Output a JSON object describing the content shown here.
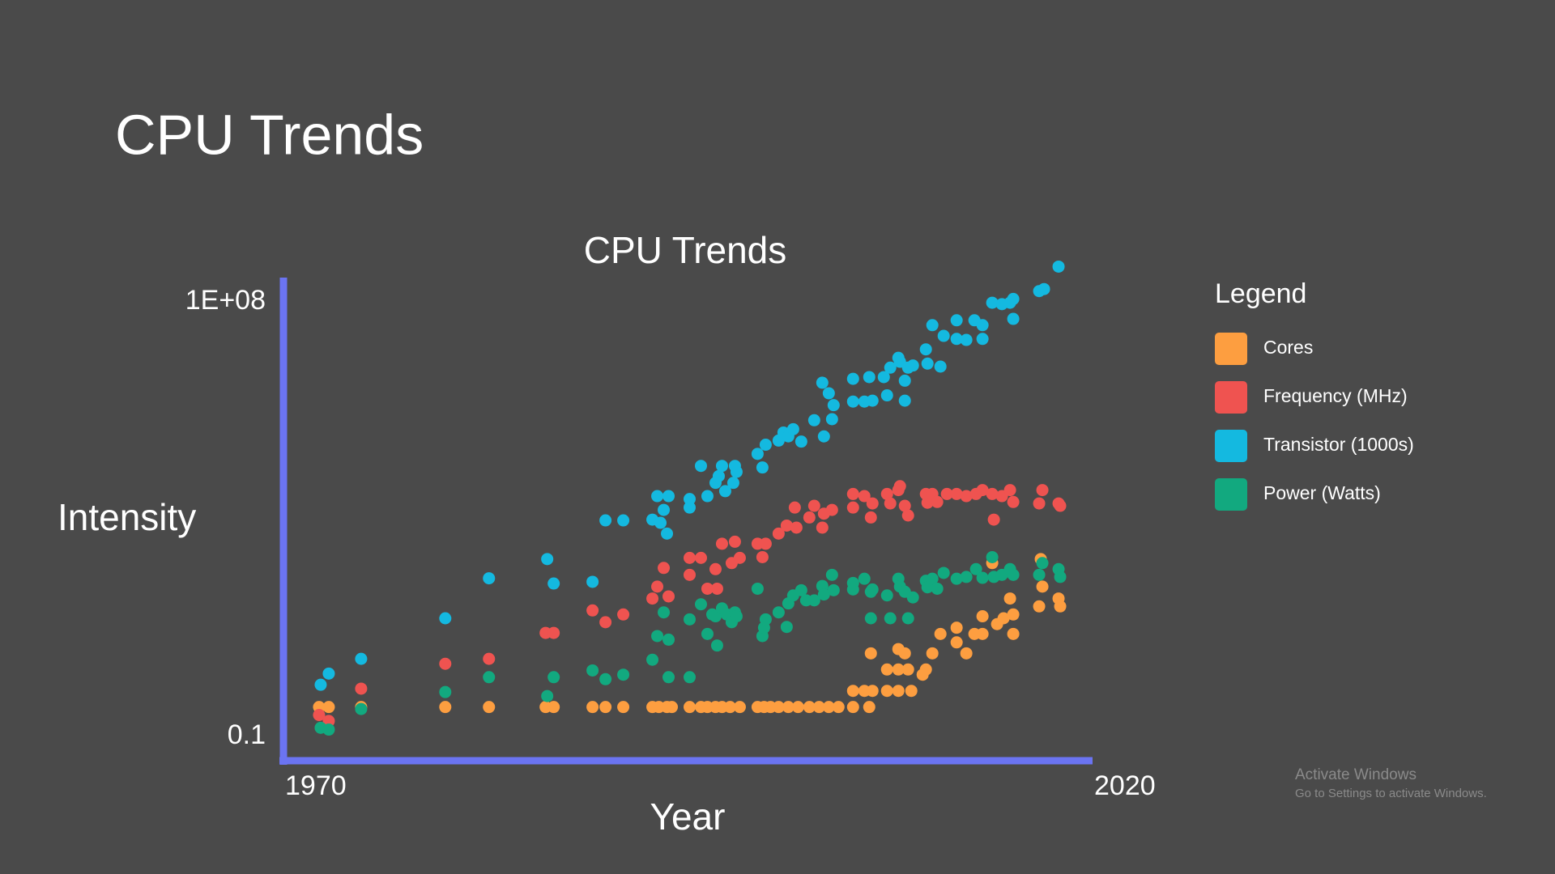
{
  "page_title": "CPU Trends",
  "watermark": {
    "title": "Activate Windows",
    "subtitle": "Go to Settings to activate Windows."
  },
  "chart_data": {
    "type": "scatter",
    "title": "CPU Trends",
    "x_label": "Year",
    "y_label": "Intensity",
    "yscale": "log",
    "xlim": [
      1970,
      2020
    ],
    "xticks": [
      1970,
      2020
    ],
    "ylim": [
      0.1,
      100000000
    ],
    "yticks": [
      0.1,
      {
        "value": 100000000,
        "label": "1E+08"
      }
    ],
    "grid": false,
    "legend": "right",
    "legend_title": "Legend",
    "axis_color": "#6b74f2",
    "series": [
      {
        "name": "Cores",
        "color": "#fd9e40",
        "x": [
          1972.2,
          1972.8,
          1974.8,
          1980.0,
          1982.7,
          1986.2,
          1986.7,
          1989.1,
          1989.9,
          1991.0,
          1992.8,
          1993.2,
          1993.7,
          1994.0,
          1995.1,
          1995.8,
          1996.2,
          1996.7,
          1997.1,
          1997.6,
          1998.2,
          1999.3,
          1999.7,
          2000.1,
          2000.6,
          2001.2,
          2001.8,
          2002.5,
          2003.1,
          2003.7,
          2004.3,
          2005.2,
          2006.2,
          2005.2,
          2005.9,
          2006.4,
          2007.3,
          2008.0,
          2008.8,
          2006.3,
          2008.0,
          2008.4,
          2007.3,
          2008.0,
          2008.6,
          2009.7,
          2009.5,
          2010.1,
          2010.6,
          2011.6,
          2011.6,
          2012.2,
          2012.7,
          2013.2,
          2013.2,
          2014.1,
          2014.5,
          2014.9,
          2015.1,
          2015.1,
          2013.8,
          2016.7,
          2016.9,
          2016.8,
          2017.9,
          2018.0
        ],
        "values": [
          1,
          1,
          1,
          1,
          1,
          1,
          1,
          1,
          1,
          1,
          1,
          1,
          1,
          1,
          1,
          1,
          1,
          1,
          1,
          1,
          1,
          1,
          1,
          1,
          1,
          1,
          1,
          1,
          1,
          1,
          1,
          1,
          1,
          2,
          2,
          2,
          2,
          2,
          2,
          10,
          12,
          10,
          5,
          5,
          5,
          5,
          4,
          10,
          23,
          30,
          16,
          10,
          23,
          23,
          49,
          35,
          45,
          105,
          53,
          23,
          480,
          75,
          175,
          570,
          105,
          75
        ]
      },
      {
        "name": "Frequency (MHz)",
        "color": "#ef5350",
        "x": [
          1972.2,
          1972.8,
          1974.8,
          1980.0,
          1982.7,
          1986.2,
          1986.7,
          1989.1,
          1989.9,
          1991.0,
          1992.8,
          1993.1,
          1993.5,
          1993.8,
          1995.1,
          1995.1,
          1995.8,
          1996.2,
          1996.7,
          1996.8,
          1997.1,
          1997.9,
          1997.7,
          1998.2,
          1999.3,
          1999.6,
          1999.8,
          2000.6,
          2001.1,
          2001.6,
          2001.7,
          2002.5,
          2002.8,
          2003.3,
          2003.4,
          2003.9,
          2005.2,
          2005.2,
          2005.9,
          2006.3,
          2006.4,
          2007.3,
          2007.5,
          2008.0,
          2008.1,
          2008.4,
          2008.6,
          2009.7,
          2009.8,
          2010.1,
          2010.4,
          2011.0,
          2011.6,
          2012.2,
          2012.8,
          2013.2,
          2013.8,
          2013.9,
          2014.4,
          2014.9,
          2015.1,
          2016.7,
          2016.9,
          2017.9,
          2018.0
        ],
        "values": [
          0.71,
          0.55,
          2.2,
          6.4,
          7.9,
          24,
          24,
          63,
          38,
          53,
          105,
          175,
          390,
          115,
          290,
          600,
          600,
          160,
          370,
          160,
          1100,
          1200,
          480,
          600,
          1100,
          620,
          1100,
          1700,
          2400,
          5200,
          2200,
          3400,
          5600,
          2200,
          4000,
          4700,
          9300,
          5200,
          8500,
          3400,
          6200,
          9300,
          6200,
          11000,
          13000,
          5600,
          3700,
          9300,
          6400,
          9300,
          6600,
          9300,
          9300,
          8500,
          9300,
          11000,
          9300,
          3100,
          8500,
          11000,
          6600,
          6200,
          11000,
          6200,
          5600
        ]
      },
      {
        "name": "Transistor (1000s)",
        "color": "#14b9e0",
        "x": [
          1972.3,
          1972.8,
          1974.8,
          1980.0,
          1982.7,
          1986.3,
          1986.7,
          1989.1,
          1989.9,
          1991.0,
          1992.8,
          1993.1,
          1993.3,
          1993.5,
          1993.8,
          1993.7,
          1995.1,
          1995.1,
          1995.8,
          1996.2,
          1996.7,
          1996.9,
          1997.1,
          1997.3,
          1997.9,
          1997.8,
          1998.0,
          1999.3,
          1999.6,
          1999.8,
          2000.6,
          2000.9,
          2001.2,
          2001.5,
          2002.0,
          2002.8,
          2003.4,
          2003.9,
          2003.3,
          2003.7,
          2004.0,
          2005.2,
          2005.2,
          2005.9,
          2006.2,
          2006.4,
          2007.1,
          2007.3,
          2007.5,
          2008.0,
          2008.1,
          2008.4,
          2008.4,
          2008.6,
          2008.9,
          2009.7,
          2009.8,
          2010.1,
          2010.6,
          2010.8,
          2011.6,
          2011.6,
          2012.2,
          2012.7,
          2013.2,
          2013.2,
          2013.8,
          2014.4,
          2014.9,
          2015.1,
          2015.1,
          2016.7,
          2017.0,
          2017.9
        ],
        "values": [
          2.6,
          4.2,
          7.9,
          45,
          250,
          570,
          200,
          215,
          3000,
          3000,
          3100,
          8500,
          2700,
          4700,
          8500,
          1700,
          7500,
          5200,
          31000,
          8500,
          15000,
          20000,
          31000,
          10500,
          31000,
          15000,
          24000,
          52000,
          29000,
          77000,
          92000,
          130000,
          110000,
          150000,
          88000,
          220000,
          110000,
          230000,
          1100000,
          700000,
          420000,
          1300000,
          490000,
          490000,
          1400000,
          510000,
          1400000,
          640000,
          2100000,
          3200000,
          2700000,
          510000,
          1200000,
          2100000,
          2300000,
          4600000,
          2500000,
          13000000,
          2200000,
          8200000,
          16000000,
          7200000,
          6900000,
          16000000,
          13000000,
          7200000,
          34000000,
          32000000,
          34000000,
          40000000,
          17000000,
          56000000,
          61000000,
          160000000
        ]
      },
      {
        "name": "Power (Watts)",
        "color": "#12a97f",
        "x": [
          1972.3,
          1972.8,
          1974.8,
          1980.0,
          1982.7,
          1986.3,
          1986.7,
          1989.1,
          1989.9,
          1991.0,
          1992.8,
          1993.1,
          1993.5,
          1993.8,
          1993.8,
          1995.1,
          1995.1,
          1995.8,
          1996.2,
          1996.5,
          1996.8,
          1996.7,
          1997.1,
          1997.4,
          1997.7,
          1997.9,
          1998.0,
          1999.3,
          1999.6,
          1999.7,
          1999.8,
          2000.6,
          2001.1,
          2001.2,
          2001.5,
          2002.0,
          2002.3,
          2002.8,
          2003.3,
          2003.4,
          2003.9,
          2004.0,
          2005.2,
          2005.2,
          2005.9,
          2006.3,
          2006.3,
          2006.4,
          2007.3,
          2007.5,
          2008.0,
          2008.1,
          2008.4,
          2008.6,
          2008.9,
          2009.7,
          2009.8,
          2010.1,
          2010.4,
          2010.8,
          2011.6,
          2012.2,
          2012.8,
          2013.2,
          2013.8,
          2013.9,
          2014.4,
          2014.9,
          2015.1,
          2016.7,
          2016.9,
          2017.9,
          2018.0
        ],
        "values": [
          0.41,
          0.38,
          0.92,
          1.9,
          3.6,
          1.6,
          3.6,
          4.8,
          3.3,
          4.0,
          7.6,
          21,
          58,
          18,
          3.6,
          3.6,
          43,
          82,
          23,
          53,
          14,
          49,
          69,
          53,
          38,
          58,
          49,
          160,
          21,
          30,
          43,
          58,
          31,
          85,
          120,
          150,
          97,
          97,
          180,
          125,
          290,
          150,
          205,
          155,
          245,
          45,
          140,
          155,
          120,
          45,
          245,
          175,
          140,
          45,
          110,
          225,
          170,
          245,
          160,
          315,
          245,
          265,
          370,
          255,
          620,
          265,
          290,
          370,
          290,
          290,
          480,
          370,
          265
        ]
      }
    ]
  }
}
